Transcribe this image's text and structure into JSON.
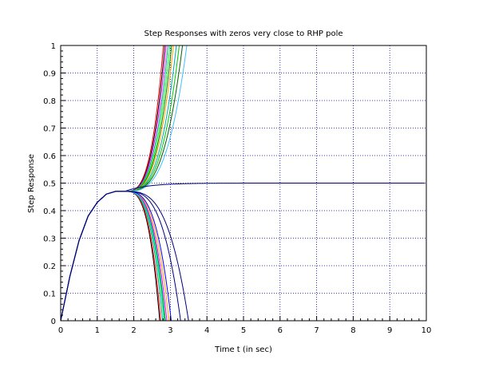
{
  "chart_data": {
    "type": "line",
    "title": "Step Responses with zeros very close to RHP pole",
    "xlabel": "Time t (in sec)",
    "ylabel": "Step Response",
    "xlim": [
      0,
      10
    ],
    "ylim": [
      0,
      1
    ],
    "x_ticks": [
      "0",
      "1",
      "2",
      "3",
      "4",
      "5",
      "6",
      "7",
      "8",
      "9",
      "10"
    ],
    "y_ticks": [
      "0",
      "0.1",
      "0.2",
      "0.3",
      "0.4",
      "0.5",
      "0.6",
      "0.7",
      "0.8",
      "0.9",
      "1"
    ],
    "grid": true,
    "grid_color": "#0000aa",
    "t_sample": [
      0,
      0.25,
      0.5,
      0.75,
      1.0,
      1.25,
      1.5,
      1.75
    ],
    "common_response": [
      0,
      0.16,
      0.29,
      0.38,
      0.43,
      0.46,
      0.47,
      0.47
    ],
    "series": [
      {
        "color": "#ff0000",
        "t_one": 2.82,
        "s_last": 0.09
      },
      {
        "color": "#000000",
        "t_one": 2.86,
        "s_last": 0.085
      },
      {
        "color": "#ff00ff",
        "t_one": 2.9,
        "s_last": 0.08
      },
      {
        "color": "#00a0a0",
        "t_one": 2.95,
        "s_last": 0.075
      },
      {
        "color": "#00ff00",
        "t_one": 3.0,
        "s_last": 0.07
      },
      {
        "color": "#008000",
        "t_one": 3.05,
        "s_last": 0.065
      },
      {
        "color": "#ffa000",
        "t_one": 3.1,
        "s_last": 0.06
      },
      {
        "color": "#00aaaa",
        "t_one": 3.18,
        "s_last": 0.055
      },
      {
        "color": "#00c800",
        "t_one": 3.26,
        "s_last": 0.05
      },
      {
        "color": "#006000",
        "t_one": 3.35,
        "s_last": 0.045
      },
      {
        "color": "#40c0ff",
        "t_one": 3.47,
        "s_last": 0.04
      },
      {
        "color": "#000080",
        "t_one": null,
        "s_last": 0.02,
        "steady": 0.5
      },
      {
        "color": "#000000",
        "t_zero": 2.72,
        "s_last": -0.09
      },
      {
        "color": "#ff0000",
        "t_zero": 2.75,
        "s_last": -0.085
      },
      {
        "color": "#00a0a0",
        "t_zero": 2.8,
        "s_last": -0.08
      },
      {
        "color": "#00ff00",
        "t_zero": 2.84,
        "s_last": -0.075
      },
      {
        "color": "#008000",
        "t_zero": 2.88,
        "s_last": -0.07
      },
      {
        "color": "#ff00ff",
        "t_zero": 2.92,
        "s_last": -0.065
      },
      {
        "color": "#ffa000",
        "t_zero": 2.98,
        "s_last": -0.06
      },
      {
        "color": "#00c8ff",
        "t_zero": 2.86,
        "s_last": -0.072
      },
      {
        "color": "#0000ff",
        "t_zero": 3.04,
        "s_last": -0.055
      },
      {
        "color": "#000080",
        "t_zero": 3.3,
        "s_last": -0.035
      },
      {
        "color": "#000080",
        "t_zero": 3.52,
        "s_last": -0.025
      }
    ]
  }
}
